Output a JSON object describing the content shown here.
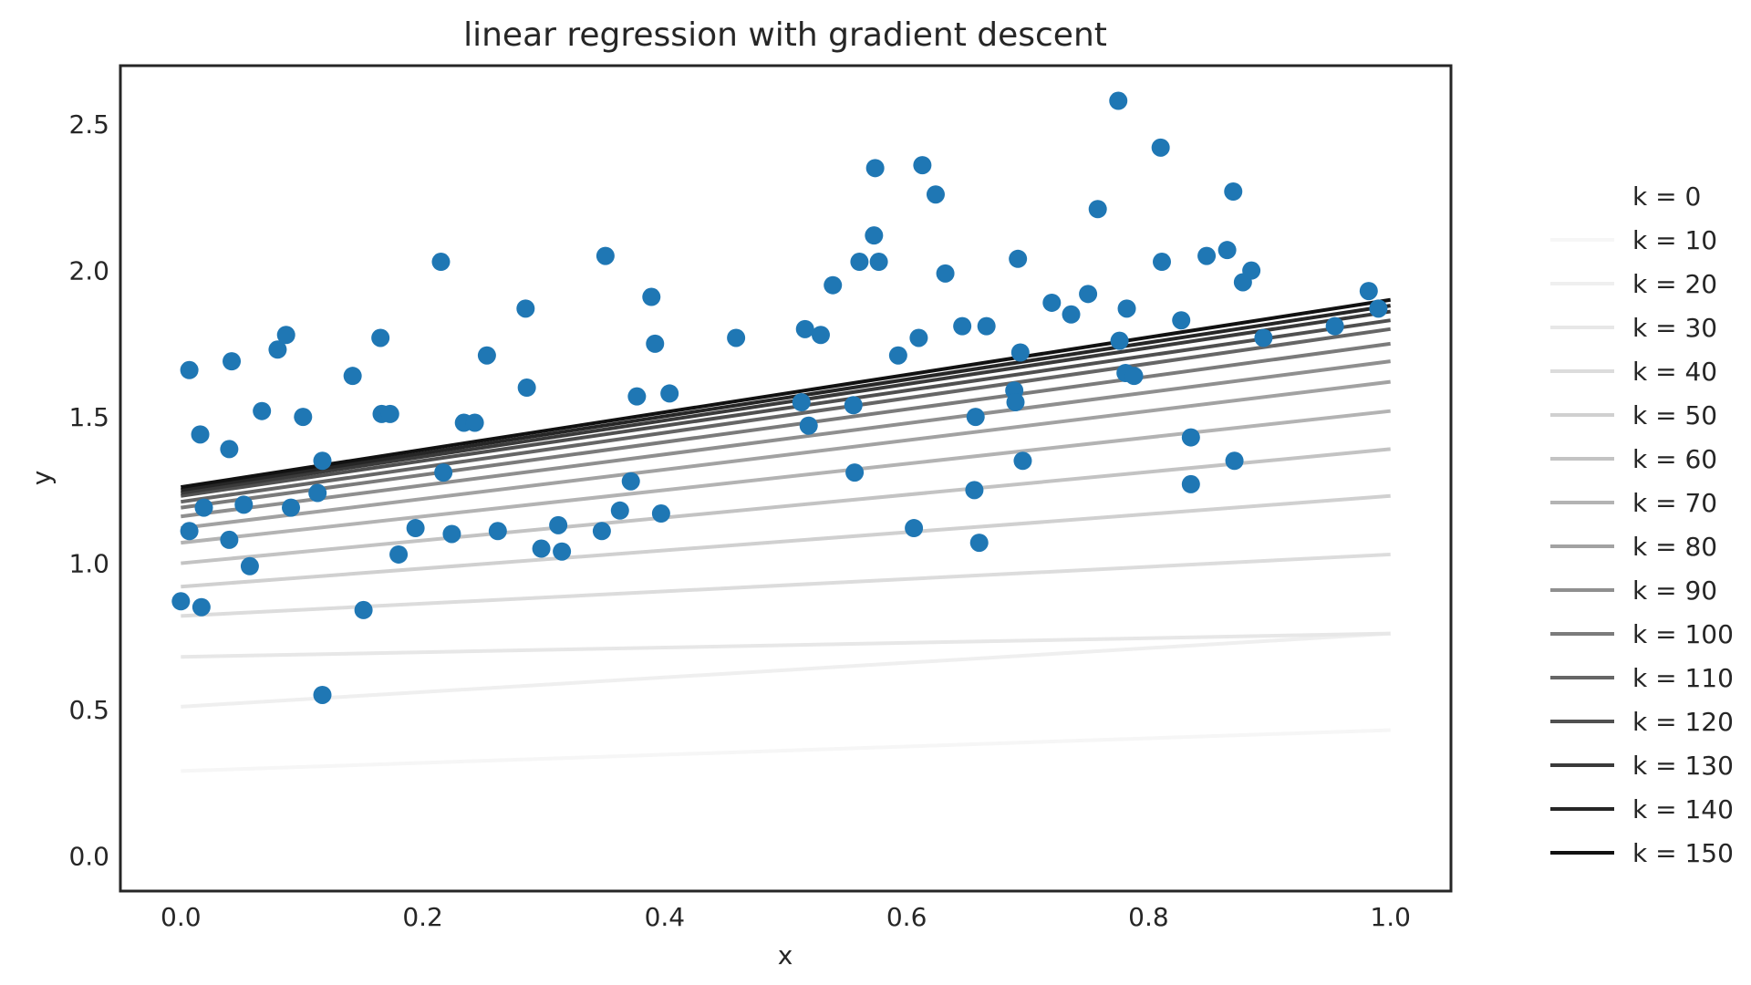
{
  "chart_data": {
    "type": "scatter",
    "title": "linear regression with gradient descent",
    "xlabel": "x",
    "ylabel": "y",
    "xlim": [
      -0.05,
      1.05
    ],
    "ylim": [
      -0.12,
      2.7
    ],
    "xticks": [
      "0.0",
      "0.2",
      "0.4",
      "0.6",
      "0.8",
      "1.0"
    ],
    "yticks": [
      "0.0",
      "0.5",
      "1.0",
      "1.5",
      "2.0",
      "2.5"
    ],
    "grid": false,
    "legend_position": "right",
    "point_color": "#1f77b4",
    "points": [
      [
        0.0,
        0.87
      ],
      [
        0.007,
        1.66
      ],
      [
        0.007,
        1.11
      ],
      [
        0.017,
        0.85
      ],
      [
        0.019,
        1.19
      ],
      [
        0.016,
        1.44
      ],
      [
        0.04,
        1.08
      ],
      [
        0.04,
        1.39
      ],
      [
        0.042,
        1.69
      ],
      [
        0.052,
        1.2
      ],
      [
        0.057,
        0.99
      ],
      [
        0.067,
        1.52
      ],
      [
        0.08,
        1.73
      ],
      [
        0.087,
        1.78
      ],
      [
        0.091,
        1.19
      ],
      [
        0.101,
        1.5
      ],
      [
        0.113,
        1.24
      ],
      [
        0.117,
        1.35
      ],
      [
        0.117,
        0.55
      ],
      [
        0.142,
        1.64
      ],
      [
        0.151,
        0.84
      ],
      [
        0.165,
        1.77
      ],
      [
        0.166,
        1.51
      ],
      [
        0.173,
        1.51
      ],
      [
        0.18,
        1.03
      ],
      [
        0.194,
        1.12
      ],
      [
        0.215,
        2.03
      ],
      [
        0.217,
        1.31
      ],
      [
        0.224,
        1.1
      ],
      [
        0.234,
        1.48
      ],
      [
        0.243,
        1.48
      ],
      [
        0.253,
        1.71
      ],
      [
        0.262,
        1.11
      ],
      [
        0.285,
        1.87
      ],
      [
        0.286,
        1.6
      ],
      [
        0.298,
        1.05
      ],
      [
        0.312,
        1.13
      ],
      [
        0.315,
        1.04
      ],
      [
        0.348,
        1.11
      ],
      [
        0.351,
        2.05
      ],
      [
        0.363,
        1.18
      ],
      [
        0.372,
        1.28
      ],
      [
        0.377,
        1.57
      ],
      [
        0.389,
        1.91
      ],
      [
        0.392,
        1.75
      ],
      [
        0.397,
        1.17
      ],
      [
        0.404,
        1.58
      ],
      [
        0.459,
        1.77
      ],
      [
        0.513,
        1.55
      ],
      [
        0.516,
        1.8
      ],
      [
        0.519,
        1.47
      ],
      [
        0.529,
        1.78
      ],
      [
        0.539,
        1.95
      ],
      [
        0.556,
        1.54
      ],
      [
        0.557,
        1.31
      ],
      [
        0.561,
        2.03
      ],
      [
        0.573,
        2.12
      ],
      [
        0.574,
        2.35
      ],
      [
        0.577,
        2.03
      ],
      [
        0.593,
        1.71
      ],
      [
        0.606,
        1.12
      ],
      [
        0.61,
        1.77
      ],
      [
        0.613,
        2.36
      ],
      [
        0.624,
        2.26
      ],
      [
        0.632,
        1.99
      ],
      [
        0.646,
        1.81
      ],
      [
        0.656,
        1.25
      ],
      [
        0.657,
        1.5
      ],
      [
        0.66,
        1.07
      ],
      [
        0.666,
        1.81
      ],
      [
        0.689,
        1.59
      ],
      [
        0.69,
        1.55
      ],
      [
        0.692,
        2.04
      ],
      [
        0.694,
        1.72
      ],
      [
        0.696,
        1.35
      ],
      [
        0.72,
        1.89
      ],
      [
        0.736,
        1.85
      ],
      [
        0.75,
        1.92
      ],
      [
        0.758,
        2.21
      ],
      [
        0.775,
        2.58
      ],
      [
        0.776,
        1.76
      ],
      [
        0.781,
        1.65
      ],
      [
        0.782,
        1.87
      ],
      [
        0.788,
        1.64
      ],
      [
        0.81,
        2.42
      ],
      [
        0.811,
        2.03
      ],
      [
        0.827,
        1.83
      ],
      [
        0.835,
        1.43
      ],
      [
        0.835,
        1.27
      ],
      [
        0.848,
        2.05
      ],
      [
        0.865,
        2.07
      ],
      [
        0.87,
        2.27
      ],
      [
        0.871,
        1.35
      ],
      [
        0.878,
        1.96
      ],
      [
        0.885,
        2.0
      ],
      [
        0.895,
        1.77
      ],
      [
        0.954,
        1.81
      ],
      [
        0.982,
        1.93
      ],
      [
        0.99,
        1.87
      ]
    ],
    "series": [
      {
        "name": "k = 0",
        "color": "#ffffff",
        "intercept": 0.0,
        "slope": 0.0
      },
      {
        "name": "k = 10",
        "color": "#f6f6f6",
        "intercept": 0.29,
        "slope": 0.14
      },
      {
        "name": "k = 20",
        "color": "#efefef",
        "intercept": 0.51,
        "slope": 0.25
      },
      {
        "name": "k = 30",
        "color": "#e7e7e7",
        "intercept": 0.68,
        "slope": 0.08
      },
      {
        "name": "k = 40",
        "color": "#dcdcdc",
        "intercept": 0.82,
        "slope": 0.21
      },
      {
        "name": "k = 50",
        "color": "#d0d0d0",
        "intercept": 0.92,
        "slope": 0.31
      },
      {
        "name": "k = 60",
        "color": "#c3c3c3",
        "intercept": 1.0,
        "slope": 0.39
      },
      {
        "name": "k = 70",
        "color": "#b3b3b3",
        "intercept": 1.07,
        "slope": 0.45
      },
      {
        "name": "k = 80",
        "color": "#a2a2a2",
        "intercept": 1.12,
        "slope": 0.5
      },
      {
        "name": "k = 90",
        "color": "#8f8f8f",
        "intercept": 1.16,
        "slope": 0.53
      },
      {
        "name": "k = 100",
        "color": "#7b7b7b",
        "intercept": 1.19,
        "slope": 0.56
      },
      {
        "name": "k = 110",
        "color": "#666666",
        "intercept": 1.21,
        "slope": 0.59
      },
      {
        "name": "k = 120",
        "color": "#505050",
        "intercept": 1.23,
        "slope": 0.6
      },
      {
        "name": "k = 130",
        "color": "#3a3a3a",
        "intercept": 1.24,
        "slope": 0.62
      },
      {
        "name": "k = 140",
        "color": "#262626",
        "intercept": 1.25,
        "slope": 0.63
      },
      {
        "name": "k = 150",
        "color": "#111111",
        "intercept": 1.26,
        "slope": 0.64
      }
    ]
  }
}
